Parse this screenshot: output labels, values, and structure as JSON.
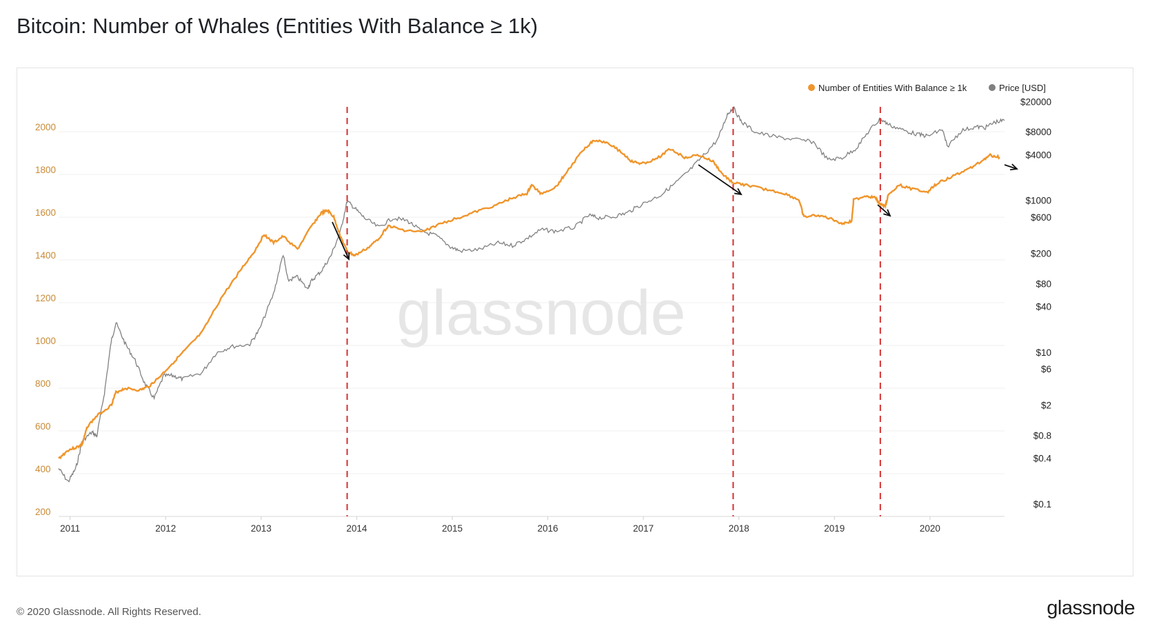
{
  "header": {
    "title": "Bitcoin: Number of Whales (Entities With Balance ≥ 1k)"
  },
  "footer": {
    "copyright": "© 2020 Glassnode. All Rights Reserved.",
    "brand": "glassnode"
  },
  "watermark": "glassnode",
  "colors": {
    "entities": "#f0952b",
    "price": "#808080",
    "marker": "#d62e2e",
    "arrow": "#111111",
    "left_axis_text": "#c98a36"
  },
  "chart_data": {
    "type": "line",
    "title": "Bitcoin: Number of Whales (Entities With Balance ≥ 1k)",
    "x_ticks": [
      "2011",
      "2012",
      "2013",
      "2014",
      "2015",
      "2016",
      "2017",
      "2018",
      "2019",
      "2020"
    ],
    "xlim": [
      2010.9,
      2020.8
    ],
    "left_axis": {
      "ticks": [
        "200",
        "400",
        "600",
        "800",
        "1000",
        "1200",
        "1400",
        "1600",
        "1800",
        "2000"
      ],
      "range": [
        200,
        2200
      ]
    },
    "right_axis": {
      "scale": "log",
      "ticks": [
        "$0.1",
        "$0.4",
        "$0.8",
        "$2",
        "$6",
        "$10",
        "$40",
        "$80",
        "$200",
        "$600",
        "$1000",
        "$4000",
        "$8000",
        "$20000"
      ],
      "tick_values": [
        0.1,
        0.4,
        0.8,
        2,
        6,
        10,
        40,
        80,
        200,
        600,
        1000,
        4000,
        8000,
        20000
      ]
    },
    "legend": {
      "position": "top-right",
      "entries": [
        "Number of Entities With Balance ≥ 1k",
        "Price [USD]"
      ]
    },
    "grid": "horizontal",
    "vertical_markers": [
      {
        "x": 2013.92,
        "style": "dashed"
      },
      {
        "x": 2017.96,
        "style": "dashed"
      },
      {
        "x": 2019.5,
        "style": "dashed"
      }
    ],
    "series": [
      {
        "name": "Number of Entities With Balance ≥ 1k",
        "axis": "left",
        "color": "#f0952b",
        "x": [
          2010.9,
          2011.0,
          2011.1,
          2011.15,
          2011.2,
          2011.3,
          2011.45,
          2011.5,
          2011.6,
          2011.75,
          2011.85,
          2011.95,
          2012.1,
          2012.25,
          2012.4,
          2012.6,
          2012.8,
          2012.95,
          2013.05,
          2013.15,
          2013.25,
          2013.4,
          2013.55,
          2013.65,
          2013.72,
          2013.78,
          2013.85,
          2013.92,
          2014.0,
          2014.15,
          2014.25,
          2014.35,
          2014.5,
          2014.7,
          2014.9,
          2015.1,
          2015.3,
          2015.5,
          2015.65,
          2015.8,
          2015.85,
          2015.95,
          2016.1,
          2016.2,
          2016.4,
          2016.5,
          2016.65,
          2016.8,
          2016.9,
          2017.0,
          2017.15,
          2017.3,
          2017.45,
          2017.6,
          2017.75,
          2017.85,
          2017.96,
          2018.1,
          2018.3,
          2018.5,
          2018.65,
          2018.7,
          2018.85,
          2019.0,
          2019.1,
          2019.2,
          2019.22,
          2019.35,
          2019.45,
          2019.5,
          2019.55,
          2019.58,
          2019.7,
          2019.85,
          2020.0,
          2020.1,
          2020.25,
          2020.4,
          2020.55,
          2020.65,
          2020.75
        ],
        "y": [
          470,
          510,
          525,
          540,
          620,
          670,
          720,
          780,
          800,
          790,
          810,
          850,
          920,
          990,
          1060,
          1220,
          1350,
          1440,
          1520,
          1480,
          1510,
          1450,
          1560,
          1620,
          1630,
          1600,
          1510,
          1440,
          1420,
          1460,
          1500,
          1560,
          1540,
          1530,
          1570,
          1600,
          1630,
          1660,
          1690,
          1710,
          1750,
          1710,
          1740,
          1800,
          1920,
          1960,
          1950,
          1900,
          1860,
          1850,
          1870,
          1920,
          1880,
          1890,
          1860,
          1800,
          1760,
          1750,
          1730,
          1710,
          1680,
          1600,
          1610,
          1590,
          1570,
          1580,
          1680,
          1700,
          1690,
          1660,
          1650,
          1700,
          1750,
          1730,
          1720,
          1760,
          1790,
          1820,
          1860,
          1890,
          1880
        ]
      },
      {
        "name": "Price [USD]",
        "axis": "right",
        "color": "#808080",
        "x": [
          2010.9,
          2011.0,
          2011.08,
          2011.15,
          2011.25,
          2011.3,
          2011.38,
          2011.45,
          2011.5,
          2011.6,
          2011.7,
          2011.8,
          2011.9,
          2012.0,
          2012.1,
          2012.2,
          2012.4,
          2012.55,
          2012.7,
          2012.9,
          2013.0,
          2013.15,
          2013.25,
          2013.3,
          2013.4,
          2013.5,
          2013.55,
          2013.65,
          2013.75,
          2013.85,
          2013.92,
          2014.0,
          2014.1,
          2014.25,
          2014.4,
          2014.55,
          2014.7,
          2014.85,
          2015.0,
          2015.1,
          2015.3,
          2015.5,
          2015.65,
          2015.8,
          2015.95,
          2016.1,
          2016.3,
          2016.45,
          2016.55,
          2016.7,
          2016.85,
          2017.0,
          2017.2,
          2017.35,
          2017.5,
          2017.65,
          2017.8,
          2017.9,
          2017.96,
          2018.05,
          2018.2,
          2018.4,
          2018.6,
          2018.8,
          2018.95,
          2019.1,
          2019.25,
          2019.4,
          2019.5,
          2019.6,
          2019.75,
          2019.9,
          2020.0,
          2020.15,
          2020.2,
          2020.35,
          2020.5,
          2020.6,
          2020.7,
          2020.8
        ],
        "y": [
          0.3,
          0.2,
          0.3,
          0.7,
          0.9,
          0.8,
          3,
          14,
          25,
          13,
          8,
          4,
          2.5,
          5,
          5,
          4.5,
          5.5,
          10,
          12,
          13,
          20,
          60,
          200,
          90,
          100,
          70,
          90,
          120,
          190,
          400,
          1000,
          800,
          600,
          450,
          600,
          550,
          400,
          350,
          250,
          220,
          230,
          280,
          260,
          320,
          420,
          400,
          450,
          650,
          600,
          620,
          700,
          900,
          1200,
          1700,
          2500,
          4000,
          6500,
          14000,
          17000,
          11000,
          8000,
          7000,
          6500,
          6000,
          3500,
          3700,
          5000,
          9000,
          12000,
          10000,
          8500,
          7500,
          7200,
          8800,
          5200,
          8500,
          9500,
          9300,
          11000,
          11500
        ]
      }
    ]
  }
}
